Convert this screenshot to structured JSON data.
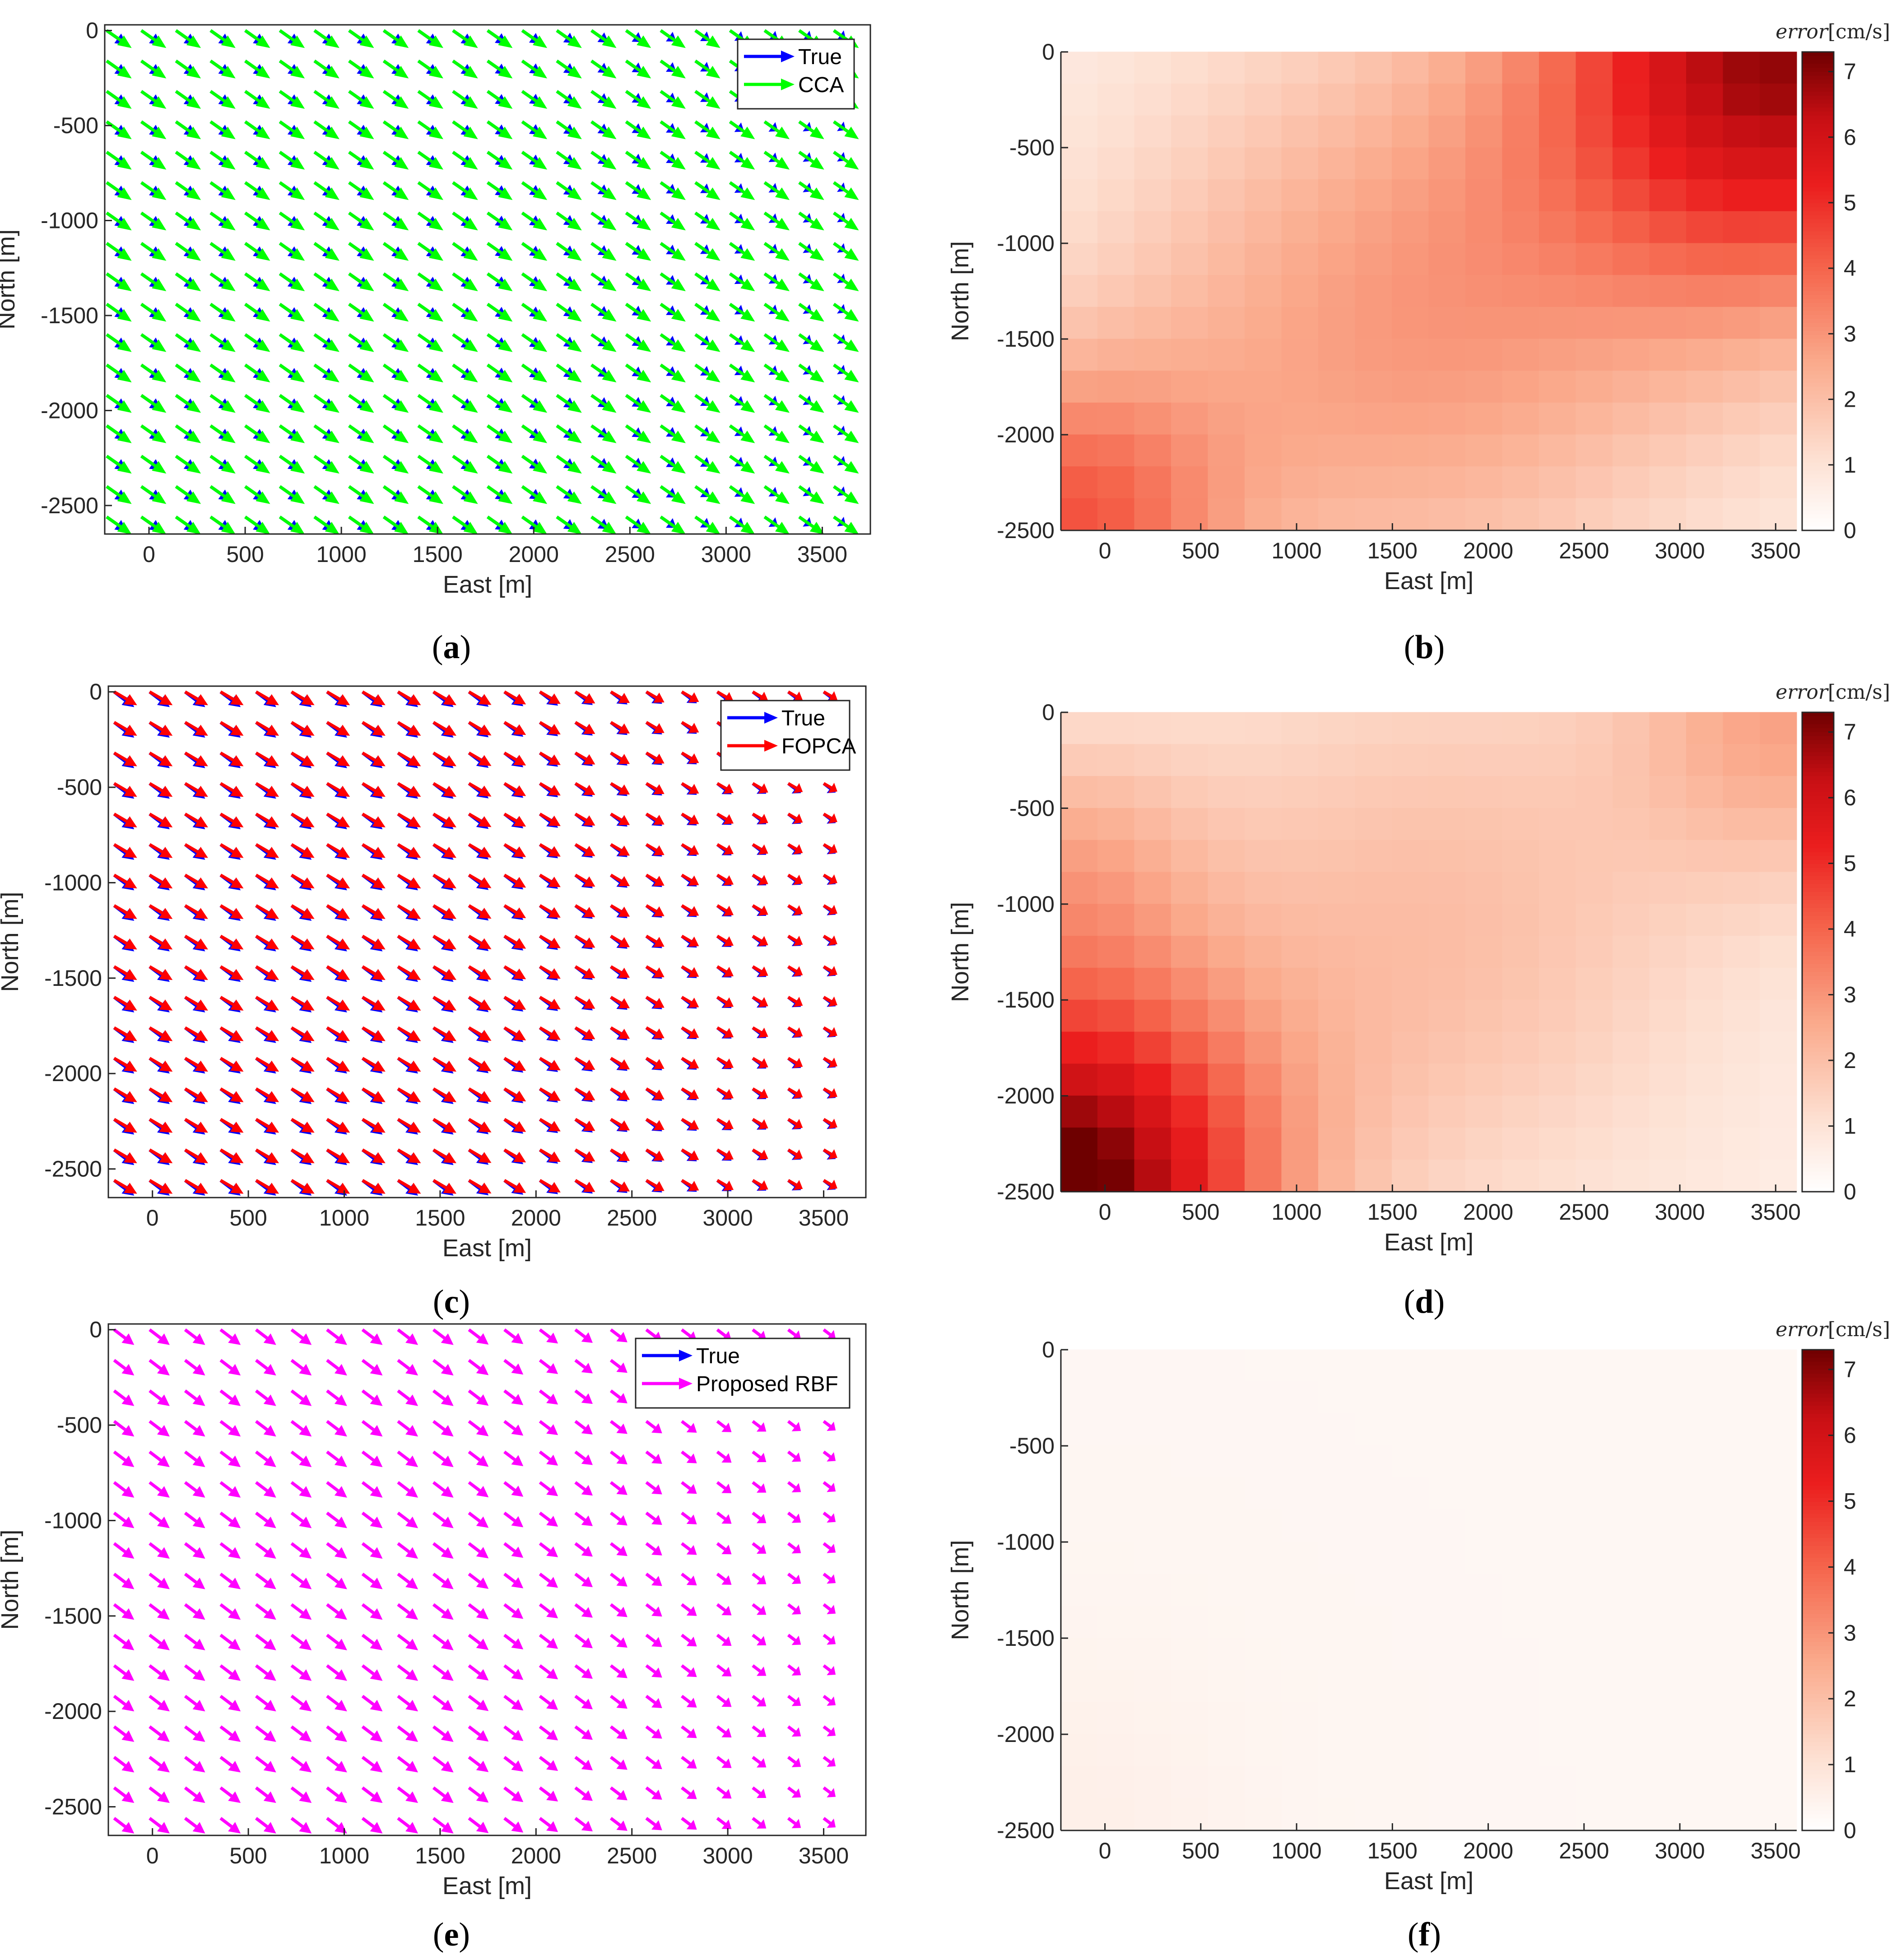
{
  "figure": {
    "description_free": true
  },
  "chart_data": [
    {
      "id": "a",
      "type": "quiver",
      "caption": "a",
      "xlabel": "East [m]",
      "ylabel": "North [m]",
      "xlim": [
        -230,
        3750
      ],
      "ylim": [
        -2650,
        30
      ],
      "xticks": [
        0,
        500,
        1000,
        1500,
        2000,
        2500,
        3000,
        3500
      ],
      "yticks": [
        0,
        -500,
        -1000,
        -1500,
        -2000,
        -2500
      ],
      "grid": false,
      "legend_position": "top-right",
      "grid_x_start": -220,
      "grid_x_step": 180,
      "grid_nx": 22,
      "grid_y_start": 0,
      "grid_y_step": -160,
      "grid_ny": 17,
      "series": [
        {
          "name": "True",
          "color": "#0000ff",
          "u": 105,
          "v": -75,
          "taper": 0.45
        },
        {
          "name": "CCA",
          "color": "#00ff00",
          "u": 130,
          "v": -92,
          "taper": 0.0
        }
      ]
    },
    {
      "id": "b",
      "type": "heatmap",
      "caption": "b",
      "xlabel": "East [m]",
      "ylabel": "North [m]",
      "xlim": [
        -230,
        3610
      ],
      "ylim": [
        -2500,
        0
      ],
      "xticks": [
        0,
        500,
        1000,
        1500,
        2000,
        2500,
        3000,
        3500
      ],
      "yticks": [
        0,
        -500,
        -1000,
        -1500,
        -2000,
        -2500
      ],
      "colorbar": {
        "label": "error",
        "unit": "[cm/s]",
        "range": [
          0,
          7.3
        ],
        "ticks": [
          0,
          1,
          2,
          3,
          4,
          5,
          6,
          7
        ],
        "colormap": "white-red"
      },
      "rows": 15,
      "cols": 20,
      "hotspots": [
        {
          "x": 3550,
          "y": 0,
          "value": 6.2,
          "spread": 900
        },
        {
          "x": 1550,
          "y": -1450,
          "value": 2.3,
          "spread": 1100
        },
        {
          "x": -230,
          "y": -2500,
          "value": 3.4,
          "spread": 600
        }
      ],
      "base": 0.5
    },
    {
      "id": "c",
      "type": "quiver",
      "caption": "c",
      "xlabel": "East [m]",
      "ylabel": "North [m]",
      "xlim": [
        -230,
        3720
      ],
      "ylim": [
        -2650,
        30
      ],
      "xticks": [
        0,
        500,
        1000,
        1500,
        2000,
        2500,
        3000,
        3500
      ],
      "yticks": [
        0,
        -500,
        -1000,
        -1500,
        -2000,
        -2500
      ],
      "grid": false,
      "legend_position": "top-right",
      "grid_x_start": -200,
      "grid_x_step": 185,
      "grid_nx": 21,
      "grid_y_start": 0,
      "grid_y_step": -160,
      "grid_ny": 17,
      "series": [
        {
          "name": "True",
          "color": "#0000ff",
          "u": 105,
          "v": -80,
          "taper": 0.45
        },
        {
          "name": "FOPCA",
          "color": "#ff0000",
          "u": 120,
          "v": -70,
          "taper": 0.45
        }
      ]
    },
    {
      "id": "d",
      "type": "heatmap",
      "caption": "d",
      "xlabel": "East [m]",
      "ylabel": "North [m]",
      "xlim": [
        -230,
        3610
      ],
      "ylim": [
        -2500,
        0
      ],
      "xticks": [
        0,
        500,
        1000,
        1500,
        2000,
        2500,
        3000,
        3500
      ],
      "yticks": [
        0,
        -500,
        -1000,
        -1500,
        -2000,
        -2500
      ],
      "colorbar": {
        "label": "error",
        "unit": "[cm/s]",
        "range": [
          0,
          7.3
        ],
        "ticks": [
          0,
          1,
          2,
          3,
          4,
          5,
          6,
          7
        ],
        "colormap": "white-red"
      },
      "rows": 15,
      "cols": 20,
      "hotspots": [
        {
          "x": -230,
          "y": -2500,
          "value": 7.0,
          "spread": 750
        },
        {
          "x": 1700,
          "y": -1100,
          "value": 1.5,
          "spread": 1100
        },
        {
          "x": 3600,
          "y": 0,
          "value": 2.0,
          "spread": 600
        },
        {
          "x": -230,
          "y": -800,
          "value": 1.5,
          "spread": 500
        }
      ],
      "base": 0.5
    },
    {
      "id": "e",
      "type": "quiver",
      "caption": "e",
      "xlabel": "East [m]",
      "ylabel": "North [m]",
      "xlim": [
        -230,
        3720
      ],
      "ylim": [
        -2650,
        30
      ],
      "xticks": [
        0,
        500,
        1000,
        1500,
        2000,
        2500,
        3000,
        3500
      ],
      "yticks": [
        0,
        -500,
        -1000,
        -1500,
        -2000,
        -2500
      ],
      "grid": false,
      "legend_position": "top-right",
      "grid_x_start": -200,
      "grid_x_step": 185,
      "grid_nx": 21,
      "grid_y_start": 0,
      "grid_y_step": -160,
      "grid_ny": 17,
      "series": [
        {
          "name": "True",
          "color": "#0000ff",
          "u": 105,
          "v": -80,
          "taper": 0.45,
          "hidden": true
        },
        {
          "name": "Proposed RBF",
          "color": "#ff00ff",
          "u": 105,
          "v": -80,
          "taper": 0.45
        }
      ]
    },
    {
      "id": "f",
      "type": "heatmap",
      "caption": "f",
      "xlabel": "East [m]",
      "ylabel": "North [m]",
      "xlim": [
        -230,
        3610
      ],
      "ylim": [
        -2500,
        0
      ],
      "xticks": [
        0,
        500,
        1000,
        1500,
        2000,
        2500,
        3000,
        3500
      ],
      "yticks": [
        0,
        -500,
        -1000,
        -1500,
        -2000,
        -2500
      ],
      "colorbar": {
        "label": "error",
        "unit": "[cm/s]",
        "range": [
          0,
          7.3
        ],
        "ticks": [
          0,
          1,
          2,
          3,
          4,
          5,
          6,
          7
        ],
        "colormap": "white-red"
      },
      "rows": 15,
      "cols": 20,
      "hotspots": [
        {
          "x": -230,
          "y": -2500,
          "value": 0.25,
          "spread": 700
        }
      ],
      "base": 0.3
    }
  ]
}
